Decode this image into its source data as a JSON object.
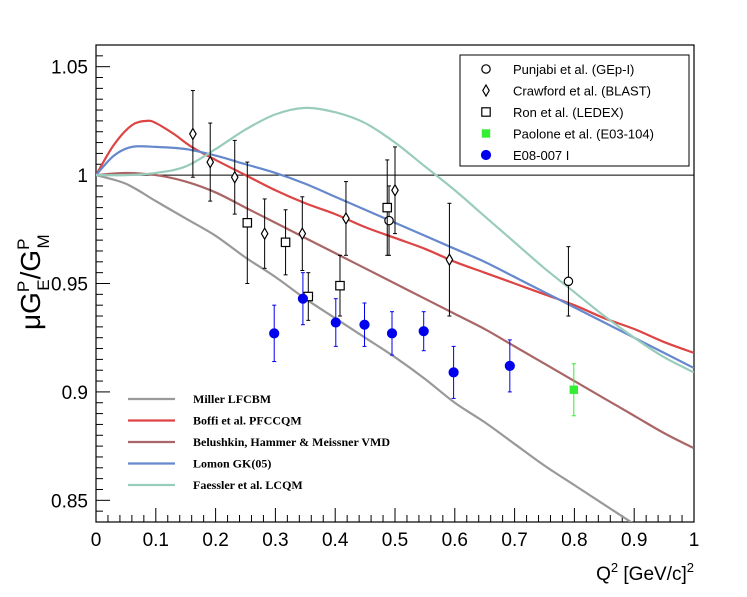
{
  "chart_data": {
    "type": "scatter",
    "title": "",
    "xlabel": "Q",
    "xlabel_sup": "2",
    "xlabel_unit": " [GeV/c]",
    "xlabel_unit_sup": "2",
    "ylabel": {
      "mu": "μ",
      "g": "G",
      "sup": "P",
      "sub_e": "E",
      "slash": "/",
      "sub_m": "M"
    },
    "xlim": [
      0,
      1
    ],
    "ylim": [
      0.84,
      1.06
    ],
    "x_ticks": [
      {
        "v": 0,
        "label": "0"
      },
      {
        "v": 0.1,
        "label": "0.1"
      },
      {
        "v": 0.2,
        "label": "0.2"
      },
      {
        "v": 0.3,
        "label": "0.3"
      },
      {
        "v": 0.4,
        "label": "0.4"
      },
      {
        "v": 0.5,
        "label": "0.5"
      },
      {
        "v": 0.6,
        "label": "0.6"
      },
      {
        "v": 0.7,
        "label": "0.7"
      },
      {
        "v": 0.8,
        "label": "0.8"
      },
      {
        "v": 0.9,
        "label": "0.9"
      },
      {
        "v": 1,
        "label": "1"
      }
    ],
    "y_ticks": [
      {
        "v": 0.85,
        "label": "0.85"
      },
      {
        "v": 0.9,
        "label": "0.9"
      },
      {
        "v": 0.95,
        "label": "0.95"
      },
      {
        "v": 1.0,
        "label": "1"
      },
      {
        "v": 1.05,
        "label": "1.05"
      }
    ],
    "reference_line": 1.0,
    "series": [
      {
        "name": "Punjabi et al. (GEp-I)",
        "marker": "open-circle",
        "color": "#000000",
        "points": [
          {
            "x": 0.49,
            "y": 0.979,
            "err": 0.016
          },
          {
            "x": 0.79,
            "y": 0.951,
            "err": 0.016
          }
        ]
      },
      {
        "name": "Crawford et al. (BLAST)",
        "marker": "open-diamond",
        "color": "#000000",
        "points": [
          {
            "x": 0.162,
            "y": 1.019,
            "err": 0.02
          },
          {
            "x": 0.191,
            "y": 1.006,
            "err": 0.018
          },
          {
            "x": 0.232,
            "y": 0.999,
            "err": 0.017
          },
          {
            "x": 0.282,
            "y": 0.973,
            "err": 0.016
          },
          {
            "x": 0.345,
            "y": 0.973,
            "err": 0.017
          },
          {
            "x": 0.418,
            "y": 0.98,
            "err": 0.017
          },
          {
            "x": 0.5,
            "y": 0.993,
            "err": 0.02
          },
          {
            "x": 0.591,
            "y": 0.961,
            "err": 0.026
          }
        ]
      },
      {
        "name": "Ron et al. (LEDEX)",
        "marker": "open-square",
        "color": "#000000",
        "points": [
          {
            "x": 0.253,
            "y": 0.978,
            "err": 0.028
          },
          {
            "x": 0.317,
            "y": 0.969,
            "err": 0.015
          },
          {
            "x": 0.355,
            "y": 0.944,
            "err": 0.011
          },
          {
            "x": 0.408,
            "y": 0.949,
            "err": 0.014
          },
          {
            "x": 0.487,
            "y": 0.985,
            "err": 0.022
          }
        ]
      },
      {
        "name": "Paolone et al. (E03-104)",
        "marker": "filled-square",
        "color": "#33ee33",
        "points": [
          {
            "x": 0.799,
            "y": 0.901,
            "err": 0.012
          }
        ]
      },
      {
        "name": "E08-007 I",
        "marker": "filled-circle",
        "color": "#0000ee",
        "points": [
          {
            "x": 0.298,
            "y": 0.927,
            "err": 0.013
          },
          {
            "x": 0.346,
            "y": 0.943,
            "err": 0.012
          },
          {
            "x": 0.401,
            "y": 0.932,
            "err": 0.011
          },
          {
            "x": 0.449,
            "y": 0.931,
            "err": 0.01
          },
          {
            "x": 0.495,
            "y": 0.927,
            "err": 0.01
          },
          {
            "x": 0.548,
            "y": 0.928,
            "err": 0.009
          },
          {
            "x": 0.598,
            "y": 0.909,
            "err": 0.012
          },
          {
            "x": 0.692,
            "y": 0.912,
            "err": 0.012
          }
        ]
      }
    ],
    "curves": [
      {
        "name": "Miller LFCBM",
        "color": "#999999",
        "x": [
          0,
          0.05,
          0.1,
          0.15,
          0.2,
          0.25,
          0.3,
          0.35,
          0.4,
          0.45,
          0.5,
          0.55,
          0.6,
          0.65,
          0.7,
          0.75,
          0.8,
          0.85,
          0.9,
          0.94
        ],
        "y": [
          1.0,
          0.996,
          0.988,
          0.98,
          0.972,
          0.962,
          0.953,
          0.943,
          0.934,
          0.925,
          0.916,
          0.906,
          0.895,
          0.886,
          0.876,
          0.866,
          0.857,
          0.848,
          0.839,
          0.832
        ]
      },
      {
        "name": "Boffi et al. PFCCQM",
        "color": "#dd4444",
        "x": [
          0,
          0.03,
          0.06,
          0.085,
          0.1,
          0.13,
          0.16,
          0.2,
          0.25,
          0.3,
          0.35,
          0.4,
          0.45,
          0.5,
          0.55,
          0.6,
          0.65,
          0.7,
          0.75,
          0.8,
          0.85,
          0.9,
          0.95,
          1.0
        ],
        "y": [
          1.0,
          1.014,
          1.023,
          1.025,
          1.024,
          1.019,
          1.013,
          1.007,
          1.0,
          0.993,
          0.987,
          0.982,
          0.976,
          0.971,
          0.966,
          0.96,
          0.955,
          0.95,
          0.945,
          0.94,
          0.934,
          0.929,
          0.923,
          0.918
        ]
      },
      {
        "name": "Belushkin, Hammer & Meissner VMD",
        "color": "#aa6666",
        "x": [
          0,
          0.05,
          0.1,
          0.15,
          0.2,
          0.25,
          0.3,
          0.35,
          0.4,
          0.45,
          0.5,
          0.55,
          0.6,
          0.65,
          0.7,
          0.75,
          0.8,
          0.85,
          0.9,
          0.95,
          1.0
        ],
        "y": [
          1.0,
          1.001,
          1.0,
          0.997,
          0.992,
          0.985,
          0.978,
          0.971,
          0.964,
          0.957,
          0.95,
          0.943,
          0.936,
          0.929,
          0.921,
          0.913,
          0.905,
          0.897,
          0.889,
          0.881,
          0.874
        ]
      },
      {
        "name": "Lomon GK(05)",
        "color": "#6688cc",
        "x": [
          0,
          0.03,
          0.06,
          0.1,
          0.15,
          0.2,
          0.25,
          0.3,
          0.35,
          0.4,
          0.45,
          0.5,
          0.55,
          0.6,
          0.65,
          0.7,
          0.75,
          0.8,
          0.85,
          0.9,
          0.95,
          1.0
        ],
        "y": [
          1.0,
          1.009,
          1.013,
          1.013,
          1.012,
          1.009,
          1.005,
          1.001,
          0.996,
          0.99,
          0.984,
          0.978,
          0.972,
          0.966,
          0.96,
          0.953,
          0.946,
          0.939,
          0.932,
          0.925,
          0.918,
          0.911
        ]
      },
      {
        "name": "Faessler et al. LCQM",
        "color": "#99ccbb",
        "x": [
          0,
          0.05,
          0.1,
          0.15,
          0.2,
          0.25,
          0.3,
          0.35,
          0.4,
          0.45,
          0.5,
          0.55,
          0.6,
          0.65,
          0.7,
          0.75,
          0.8,
          0.85,
          0.9,
          0.95,
          1.0
        ],
        "y": [
          1.0,
          1.0,
          1.001,
          1.004,
          1.012,
          1.021,
          1.028,
          1.031,
          1.029,
          1.024,
          1.015,
          1.004,
          0.993,
          0.981,
          0.969,
          0.957,
          0.946,
          0.935,
          0.925,
          0.916,
          0.909
        ]
      }
    ]
  }
}
